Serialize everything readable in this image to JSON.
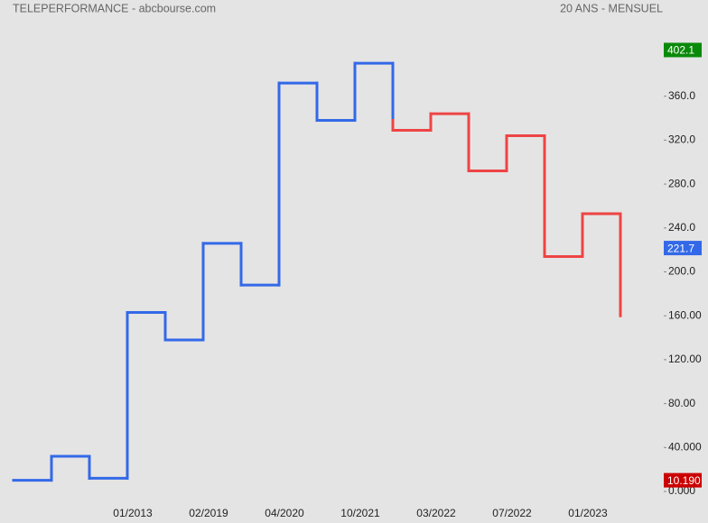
{
  "chart_data": {
    "type": "kagi",
    "title": "TELEPERFORMANCE - abcbourse.com",
    "subtitle": "20 ANS - MENSUEL",
    "categories": [
      null,
      null,
      null,
      "01/2013",
      null,
      "02/2019",
      null,
      "04/2020",
      null,
      "10/2021",
      null,
      "03/2022",
      null,
      "07/2022",
      null,
      "01/2023",
      null
    ],
    "values": [
      10.19,
      32,
      12,
      163,
      138,
      226,
      188,
      372,
      338,
      390,
      329,
      344,
      292,
      324,
      214,
      253,
      160
    ],
    "up_color": "#3369e8",
    "down_color": "#ee4444",
    "ylim": [
      0,
      400
    ],
    "yticks": [
      {
        "value": 0,
        "label": "0.000"
      },
      {
        "value": 40,
        "label": "40.000"
      },
      {
        "value": 80,
        "label": "80.00"
      },
      {
        "value": 120,
        "label": "120.00"
      },
      {
        "value": 160,
        "label": "160.00"
      },
      {
        "value": 200,
        "label": "200.0"
      },
      {
        "value": 240,
        "label": "240.0"
      },
      {
        "value": 280,
        "label": "280.0"
      },
      {
        "value": 320,
        "label": "320.0"
      },
      {
        "value": 360,
        "label": "360.0"
      }
    ],
    "markers": [
      {
        "value": 402.1,
        "label": "402.1",
        "color": "#0a8a0a"
      },
      {
        "value": 221.7,
        "label": "221.7",
        "color": "#3369e8"
      },
      {
        "value": 10.19,
        "label": "10.190",
        "color": "#cc0000"
      }
    ]
  }
}
